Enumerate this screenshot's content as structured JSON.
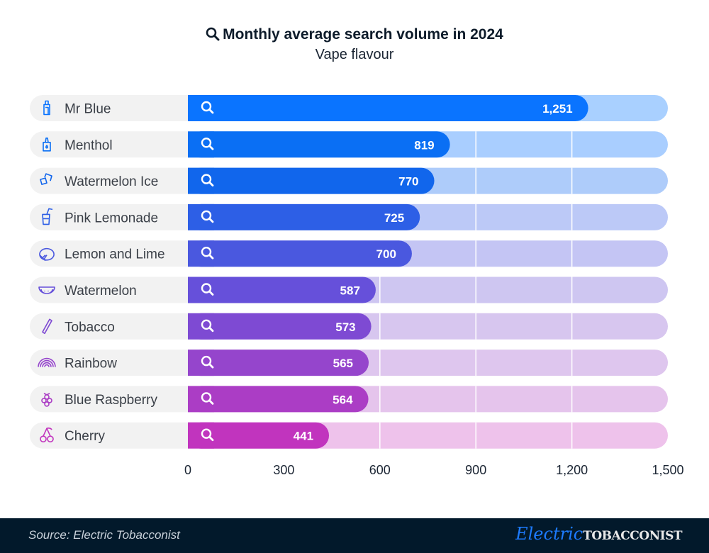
{
  "header": {
    "title": "Monthly average search volume in 2024",
    "subtitle": "Vape flavour",
    "title_icon": "search-icon"
  },
  "chart_data": {
    "type": "bar",
    "orientation": "horizontal",
    "title": "Monthly average search volume in 2024",
    "subtitle": "Vape flavour",
    "categories": [
      "Mr Blue",
      "Menthol",
      "Watermelon Ice",
      "Pink Lemonade",
      "Lemon and Lime",
      "Watermelon",
      "Tobacco",
      "Rainbow",
      "Blue Raspberry",
      "Cherry"
    ],
    "values": [
      1251,
      819,
      770,
      725,
      700,
      587,
      573,
      565,
      564,
      441
    ],
    "value_labels": [
      "1,251",
      "819",
      "770",
      "725",
      "700",
      "587",
      "573",
      "565",
      "564",
      "441"
    ],
    "icons": [
      "vape-bottle-icon",
      "eliquid-bottle-icon",
      "ice-cubes-icon",
      "lemonade-glass-icon",
      "lemon-lime-icon",
      "watermelon-slice-icon",
      "tobacco-stick-icon",
      "rainbow-icon",
      "raspberry-icon",
      "cherry-icon"
    ],
    "colors": [
      "#0A74FF",
      "#0A6FF4",
      "#1166EC",
      "#2D5FE6",
      "#4A58DF",
      "#6650DA",
      "#7E4AD3",
      "#9545CC",
      "#AB3DC5",
      "#C134BE"
    ],
    "track_colors": [
      "#A9D0FF",
      "#A9CEFF",
      "#AECCFA",
      "#BCC9F7",
      "#C4C5F4",
      "#CEC6F1",
      "#D7C6EF",
      "#DEC6EE",
      "#E5C4EC",
      "#EEC2EB"
    ],
    "xlim": [
      0,
      1500
    ],
    "xticks": [
      0,
      300,
      600,
      900,
      1200,
      1500
    ],
    "xtick_labels": [
      "0",
      "300",
      "600",
      "900",
      "1,200",
      "1,500"
    ],
    "grid": true
  },
  "footer": {
    "source": "Source: Electric Tobacconist",
    "logo_script": "Electric",
    "logo_block": "TOBACCONIST"
  }
}
